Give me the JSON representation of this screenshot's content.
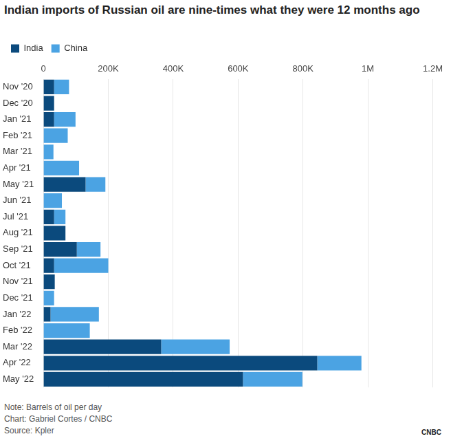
{
  "chart_data": {
    "type": "bar",
    "orientation": "horizontal",
    "stacked": true,
    "title": "Indian imports of Russian oil are nine-times what they were 12 months ago",
    "notes": [
      "Note: Barrels of oil per day",
      "Chart: Gabriel Cortes / CNBC",
      "Source: Kpler"
    ],
    "logo": "CNBC",
    "categories": [
      "Nov '20",
      "Dec '20",
      "Jan '21",
      "Feb '21",
      "Mar '21",
      "Apr '21",
      "May '21",
      "Jun '21",
      "Jul '21",
      "Aug '21",
      "Sep '21",
      "Oct '21",
      "Nov '21",
      "Dec '21",
      "Jan '22",
      "Feb '22",
      "Mar '22",
      "Apr '22",
      "May '22"
    ],
    "series": [
      {
        "name": "India",
        "color": "#0b4a7d",
        "values": [
          33000,
          33000,
          33000,
          0,
          0,
          0,
          130000,
          0,
          33000,
          68000,
          103000,
          33000,
          35000,
          0,
          22000,
          0,
          363000,
          844000,
          615000
        ]
      },
      {
        "name": "China",
        "color": "#4ba3e3",
        "values": [
          46000,
          0,
          66000,
          75000,
          31000,
          110000,
          61000,
          57000,
          35000,
          0,
          73000,
          167000,
          0,
          33000,
          149000,
          143000,
          211000,
          136000,
          183000
        ]
      }
    ],
    "xlim": [
      0,
      1200000
    ],
    "xticks": [
      0,
      {
        "value": 200000,
        "label": "200K"
      },
      {
        "value": 400000,
        "label": "400K"
      },
      {
        "value": 600000,
        "label": "600K"
      },
      {
        "value": 800000,
        "label": "800K"
      },
      {
        "value": 1000000,
        "label": "1M"
      },
      {
        "value": 1200000,
        "label": "1.2M"
      }
    ],
    "grid": true,
    "legend": "top-left"
  }
}
